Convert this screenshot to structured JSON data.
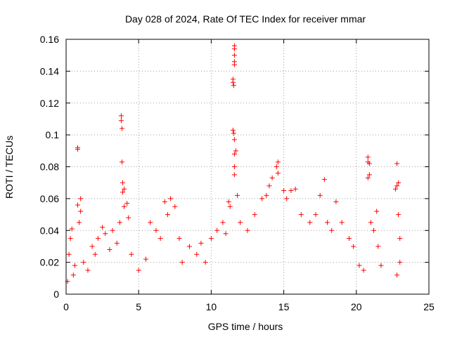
{
  "chart_data": {
    "type": "scatter",
    "title": "Day 028 of 2024, Rate Of TEC Index for receiver mmar",
    "xlabel": "GPS time / hours",
    "ylabel": "ROTI / TECUs",
    "xlim": [
      0,
      25
    ],
    "ylim": [
      0,
      0.16
    ],
    "xticks": [
      0,
      5,
      10,
      15,
      20,
      25
    ],
    "xtick_labels": [
      "0",
      "5",
      "10",
      "15",
      "20",
      "25"
    ],
    "yticks": [
      0,
      0.02,
      0.04,
      0.06,
      0.08,
      0.1,
      0.12,
      0.14,
      0.16
    ],
    "ytick_labels": [
      "0",
      "0.02",
      "0.04",
      "0.06",
      "0.08",
      "0.1",
      "0.12",
      "0.14",
      "0.16"
    ],
    "grid": true,
    "marker": "plus",
    "color": "#ff0000",
    "series": [
      {
        "points": [
          [
            0.1,
            0.008
          ],
          [
            0.2,
            0.025
          ],
          [
            0.3,
            0.035
          ],
          [
            0.4,
            0.041
          ],
          [
            0.5,
            0.012
          ],
          [
            0.6,
            0.018
          ],
          [
            0.8,
            0.056
          ],
          [
            0.8,
            0.092
          ],
          [
            0.8,
            0.091
          ],
          [
            0.9,
            0.045
          ],
          [
            1.0,
            0.06
          ],
          [
            1.0,
            0.052
          ],
          [
            1.2,
            0.02
          ],
          [
            1.5,
            0.015
          ],
          [
            1.8,
            0.03
          ],
          [
            2.0,
            0.025
          ],
          [
            2.2,
            0.035
          ],
          [
            2.5,
            0.042
          ],
          [
            2.7,
            0.038
          ],
          [
            3.0,
            0.028
          ],
          [
            3.2,
            0.04
          ],
          [
            3.5,
            0.032
          ],
          [
            3.7,
            0.045
          ],
          [
            3.8,
            0.112
          ],
          [
            3.8,
            0.109
          ],
          [
            3.85,
            0.104
          ],
          [
            3.85,
            0.083
          ],
          [
            3.9,
            0.07
          ],
          [
            3.9,
            0.064
          ],
          [
            4.0,
            0.066
          ],
          [
            4.0,
            0.055
          ],
          [
            4.2,
            0.057
          ],
          [
            4.3,
            0.048
          ],
          [
            4.5,
            0.025
          ],
          [
            5.0,
            0.015
          ],
          [
            5.5,
            0.022
          ],
          [
            5.8,
            0.045
          ],
          [
            6.2,
            0.04
          ],
          [
            6.5,
            0.035
          ],
          [
            6.8,
            0.058
          ],
          [
            7.0,
            0.05
          ],
          [
            7.2,
            0.06
          ],
          [
            7.5,
            0.055
          ],
          [
            7.8,
            0.035
          ],
          [
            8.0,
            0.02
          ],
          [
            8.5,
            0.03
          ],
          [
            9.0,
            0.025
          ],
          [
            9.3,
            0.032
          ],
          [
            9.6,
            0.02
          ],
          [
            10.0,
            0.035
          ],
          [
            10.4,
            0.04
          ],
          [
            10.8,
            0.045
          ],
          [
            11.0,
            0.038
          ],
          [
            11.2,
            0.058
          ],
          [
            11.3,
            0.055
          ],
          [
            11.5,
            0.103
          ],
          [
            11.55,
            0.101
          ],
          [
            11.6,
            0.097
          ],
          [
            11.6,
            0.088
          ],
          [
            11.7,
            0.09
          ],
          [
            11.6,
            0.08
          ],
          [
            11.6,
            0.075
          ],
          [
            11.5,
            0.133
          ],
          [
            11.5,
            0.135
          ],
          [
            11.55,
            0.131
          ],
          [
            11.6,
            0.156
          ],
          [
            11.6,
            0.154
          ],
          [
            11.6,
            0.15
          ],
          [
            11.6,
            0.146
          ],
          [
            11.6,
            0.144
          ],
          [
            11.8,
            0.062
          ],
          [
            12.0,
            0.045
          ],
          [
            12.5,
            0.04
          ],
          [
            13.0,
            0.05
          ],
          [
            13.5,
            0.06
          ],
          [
            13.8,
            0.062
          ],
          [
            14.0,
            0.068
          ],
          [
            14.2,
            0.073
          ],
          [
            14.5,
            0.08
          ],
          [
            14.6,
            0.083
          ],
          [
            14.6,
            0.076
          ],
          [
            15.0,
            0.065
          ],
          [
            15.2,
            0.06
          ],
          [
            15.5,
            0.065
          ],
          [
            15.8,
            0.066
          ],
          [
            16.2,
            0.05
          ],
          [
            16.8,
            0.045
          ],
          [
            17.2,
            0.05
          ],
          [
            17.5,
            0.062
          ],
          [
            17.8,
            0.072
          ],
          [
            18.0,
            0.045
          ],
          [
            18.3,
            0.04
          ],
          [
            18.6,
            0.058
          ],
          [
            19.0,
            0.045
          ],
          [
            19.5,
            0.035
          ],
          [
            19.8,
            0.03
          ],
          [
            20.2,
            0.018
          ],
          [
            20.5,
            0.015
          ],
          [
            20.8,
            0.086
          ],
          [
            20.8,
            0.083
          ],
          [
            20.9,
            0.082
          ],
          [
            20.9,
            0.075
          ],
          [
            20.8,
            0.073
          ],
          [
            21.0,
            0.045
          ],
          [
            21.2,
            0.04
          ],
          [
            21.4,
            0.052
          ],
          [
            21.5,
            0.03
          ],
          [
            21.7,
            0.018
          ],
          [
            22.7,
            0.066
          ],
          [
            22.8,
            0.082
          ],
          [
            22.8,
            0.068
          ],
          [
            22.9,
            0.07
          ],
          [
            22.9,
            0.05
          ],
          [
            23.0,
            0.035
          ],
          [
            23.0,
            0.02
          ],
          [
            22.8,
            0.012
          ]
        ]
      }
    ]
  }
}
